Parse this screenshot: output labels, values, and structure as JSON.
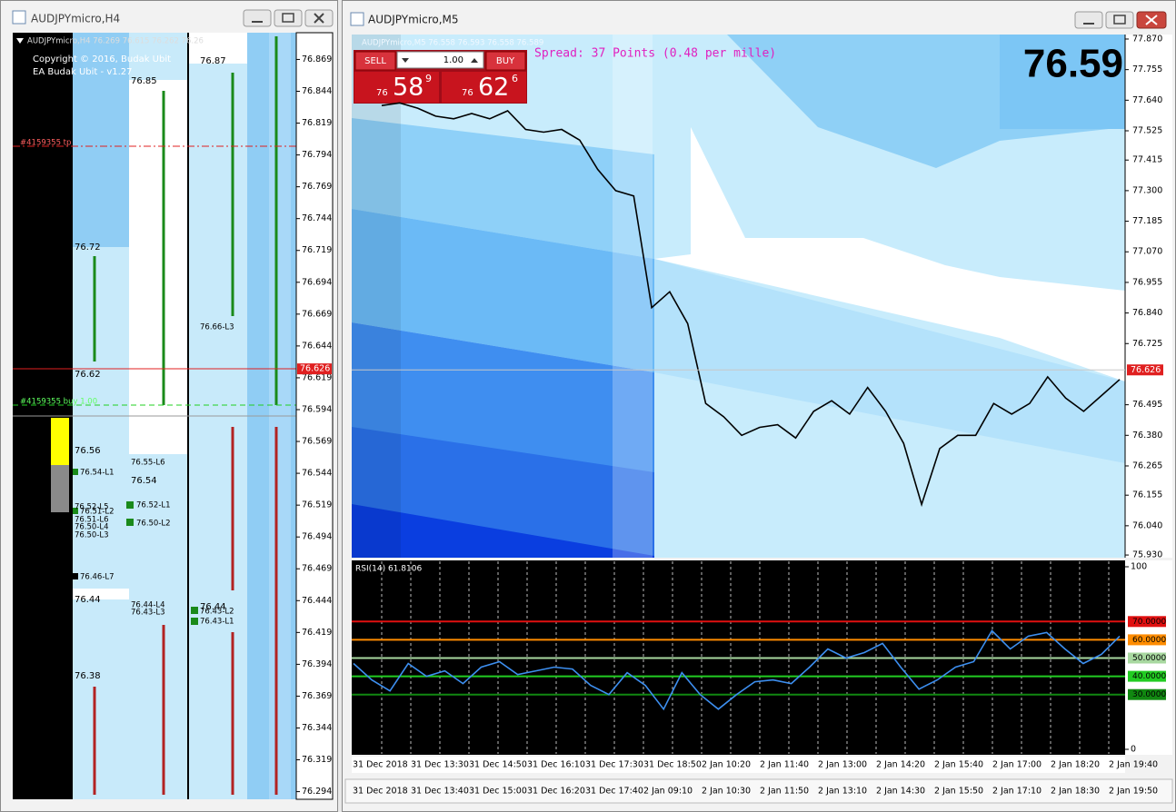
{
  "left_window": {
    "title": "AUDJPYmicro,H4",
    "header": "AUDJPYmicro,H4 76.269 76.615 76.262 76.26",
    "copyright": "Copyright © 2016, Budak Ubit",
    "ea_name": "EA Budak Ubit - v1.27",
    "order_tp": "#4159355 tp",
    "order_buy": "#4159355 buy 1.00",
    "labels": [
      "76.87",
      "76.85",
      "76.72",
      "76.62",
      "76.56",
      "76.55-L6",
      "76.54-L1",
      "76.54",
      "76.52-L1",
      "76.52-L5",
      "76.51-L2",
      "76.51-L6",
      "76.50-L4",
      "76.50-L3",
      "76.50-L2",
      "76.46-L7",
      "76.44",
      "76.44-L4",
      "76.43-L3",
      "76.44",
      "76.43-L2",
      "76.43-L1",
      "76.38",
      "76.66-L3"
    ],
    "price_axis": {
      "ylim": [
        76.288,
        76.89
      ],
      "ticks": [
        76.869,
        76.844,
        76.819,
        76.794,
        76.769,
        76.744,
        76.719,
        76.694,
        76.669,
        76.644,
        76.619,
        76.594,
        76.569,
        76.544,
        76.519,
        76.494,
        76.469,
        76.444,
        76.419,
        76.394,
        76.369,
        76.344,
        76.319,
        76.294
      ],
      "current_price": 76.626
    }
  },
  "right_window": {
    "title": "AUDJPYmicro,M5",
    "header": "AUDJPYmicro,M5 76.558 76.593 76.558 76.589",
    "trade_panel": {
      "sell": "SELL",
      "buy": "BUY",
      "lot": "1.00",
      "sell_price": {
        "big": "76",
        "pips": "58",
        "point": "9"
      },
      "buy_price": {
        "big": "76",
        "pips": "62",
        "point": "6"
      }
    },
    "spread": "Spread: 37 Points (0.48 per mille)",
    "big_price": "76.59",
    "price_chart": {
      "ylim": [
        75.92,
        77.887
      ],
      "ticks": [
        {
          "value": 77.87,
          "label": "77.870"
        },
        77.755,
        {
          "value": 77.64,
          "label": "77.640"
        },
        77.525,
        77.415,
        {
          "value": 77.3,
          "label": "77.300"
        },
        77.185,
        {
          "value": 77.07,
          "label": "77.070"
        },
        76.955,
        {
          "value": 76.84,
          "label": "76.840"
        },
        76.725,
        76.495,
        {
          "value": 76.38,
          "label": "76.380"
        },
        76.265,
        76.155,
        {
          "value": 76.04,
          "label": "76.040"
        },
        {
          "value": 75.93,
          "label": "75.930"
        }
      ],
      "current_price": 76.626,
      "color": "#000000",
      "closes": [
        77.62,
        77.63,
        77.61,
        77.58,
        77.57,
        77.59,
        77.57,
        77.6,
        77.53,
        77.52,
        77.53,
        77.49,
        77.38,
        77.3,
        77.28,
        76.86,
        76.92,
        76.8,
        76.5,
        76.45,
        76.38,
        76.41,
        76.42,
        76.37,
        76.47,
        76.51,
        76.46,
        76.56,
        76.47,
        76.35,
        76.12,
        76.33,
        76.38,
        76.38,
        76.5,
        76.46,
        76.5,
        76.6,
        76.52,
        76.47,
        76.53,
        76.59
      ]
    },
    "rsi": {
      "title": "RSI(14) 61.8106",
      "ylim": [
        0,
        100
      ],
      "ticks": [
        0,
        100
      ],
      "levels": [
        {
          "value": 70,
          "label": "70.0000",
          "color": "#e01010"
        },
        {
          "value": 60,
          "label": "60.0000",
          "color": "#ff8c00"
        },
        {
          "value": 50,
          "label": "50.0000",
          "color": "#a8d8a0"
        },
        {
          "value": 40,
          "label": "40.0000",
          "color": "#22cc22"
        },
        {
          "value": 30,
          "label": "30.0000",
          "color": "#118811"
        }
      ],
      "color": "#3d8ff0",
      "values": [
        47,
        38,
        32,
        47,
        40,
        43,
        36,
        45,
        48,
        41,
        43,
        45,
        44,
        35,
        30,
        42,
        35,
        22,
        42,
        30,
        22,
        30,
        37,
        38,
        36,
        45,
        55,
        50,
        53,
        58,
        45,
        33,
        38,
        45,
        48,
        65,
        55,
        62,
        64,
        55,
        47,
        52,
        62
      ]
    },
    "rsi_time_labels": [
      "31 Dec 2018",
      "31 Dec 13:30",
      "31 Dec 14:50",
      "31 Dec 16:10",
      "31 Dec 17:30",
      "31 Dec 18:50",
      "2 Jan 10:20",
      "2 Jan 11:40",
      "2 Jan 13:00",
      "2 Jan 14:20",
      "2 Jan 15:40",
      "2 Jan 17:00",
      "2 Jan 18:20",
      "2 Jan 19:40"
    ],
    "time_labels": [
      "31 Dec 2018",
      "31 Dec 13:40",
      "31 Dec 15:00",
      "31 Dec 16:20",
      "31 Dec 17:40",
      "2 Jan 09:10",
      "2 Jan 10:30",
      "2 Jan 11:50",
      "2 Jan 13:10",
      "2 Jan 14:30",
      "2 Jan 15:50",
      "2 Jan 17:10",
      "2 Jan 18:30",
      "2 Jan 19:50"
    ]
  }
}
